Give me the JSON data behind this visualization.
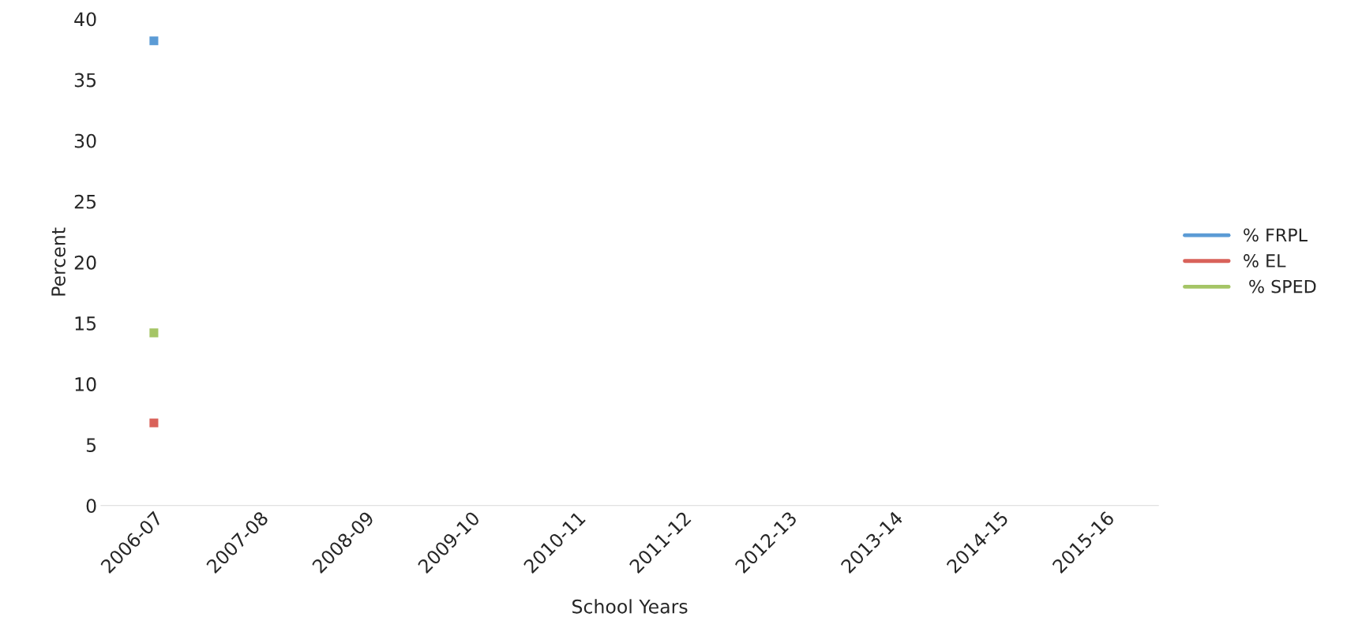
{
  "chart_data": {
    "type": "line",
    "xlabel": "School Years",
    "ylabel": "Percent",
    "categories": [
      "2006-07",
      "2007-08",
      "2008-09",
      "2009-10",
      "2010-11",
      "2011-12",
      "2012-13",
      "2013-14",
      "2014-15",
      "2015-16"
    ],
    "series": [
      {
        "name": "% FRPL",
        "color": "#5b9bd5",
        "values": [
          38.2,
          null,
          null,
          null,
          null,
          null,
          null,
          null,
          null,
          null
        ]
      },
      {
        "name": "% EL",
        "color": "#d9625a",
        "values": [
          6.8,
          null,
          null,
          null,
          null,
          null,
          null,
          null,
          null,
          null
        ]
      },
      {
        "name": " % SPED",
        "color": "#a5c566",
        "values": [
          14.2,
          null,
          null,
          null,
          null,
          null,
          null,
          null,
          null,
          null
        ]
      }
    ],
    "ylim": [
      0,
      40
    ],
    "yticks": [
      0,
      5,
      10,
      15,
      20,
      25,
      30,
      35,
      40
    ],
    "marker": "square",
    "legend": "right",
    "grid": false
  }
}
